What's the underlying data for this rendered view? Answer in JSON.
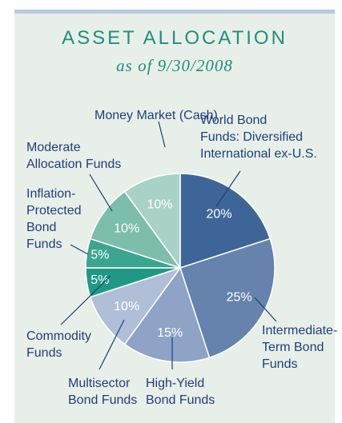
{
  "chart_data": {
    "type": "pie",
    "title": "ASSET ALLOCATION",
    "subtitle": "as of 9/30/2008",
    "categories": [
      "World Bond\nFunds: Diversified\nInternational ex-U.S.",
      "Intermediate-\nTerm Bond\nFunds",
      "High-Yield\nBond Funds",
      "Multisector\nBond Funds",
      "Commodity\nFunds",
      "Inflation-\nProtected\nBond\nFunds",
      "Moderate\nAllocation Funds",
      "Money Market (Cash)"
    ],
    "values": [
      20,
      25,
      15,
      10,
      5,
      5,
      10,
      10
    ],
    "value_labels": [
      "20%",
      "25%",
      "15%",
      "10%",
      "5%",
      "5%",
      "10%",
      "10%"
    ],
    "colors": [
      "#3e6597",
      "#6583ac",
      "#8ea3c6",
      "#b0bed7",
      "#1f9985",
      "#3ba590",
      "#7dbdab",
      "#a9d2c6"
    ]
  }
}
